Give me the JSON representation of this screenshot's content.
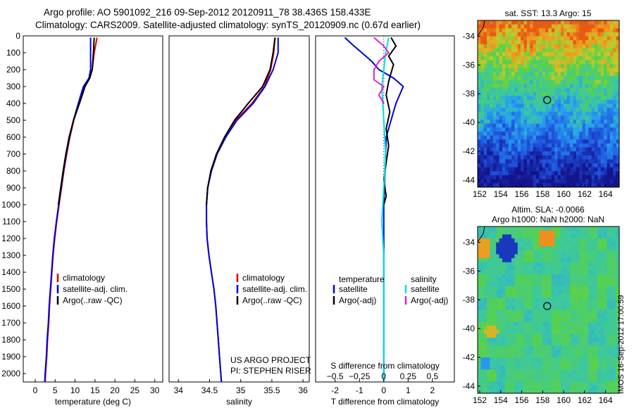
{
  "header": {
    "line1": "Argo profile: AO 5901092_216 09-Sep-2012 20120911_78 38.436S 158.433E",
    "line2": "Climatology: CARS2009. Satellite-adjusted climatology: synTS_20120909.nc (0.67d earlier)"
  },
  "credits": {
    "project": "US ARGO PROJECT",
    "pi": "PI: STEPHEN RISER",
    "imos": "IMOS 16-Sep-2012 17:00:59"
  },
  "colors": {
    "climatology": "#e00000",
    "satellite": "#0000e0",
    "argo": "#000000",
    "sal_satellite": "#00e0e0",
    "sal_argo": "#e020e0"
  },
  "chart_data": [
    {
      "type": "line",
      "name": "temperature-profile",
      "xlabel": "temperature (deg C)",
      "xlim": [
        -3,
        32
      ],
      "xticks": [
        0,
        5,
        10,
        15,
        20,
        25,
        30
      ],
      "ylim": [
        2050,
        0
      ],
      "yticks": [
        0,
        100,
        200,
        300,
        400,
        500,
        600,
        700,
        800,
        900,
        1000,
        1100,
        1200,
        1300,
        1400,
        1500,
        1600,
        1700,
        1800,
        1900,
        2000
      ],
      "legend": [
        "climatology",
        "satellite-adj. clim.",
        "Argo(..raw -QC)"
      ],
      "series": [
        {
          "name": "climatology",
          "color": "#e00000",
          "points": [
            [
              15.5,
              10
            ],
            [
              15.2,
              50
            ],
            [
              14.8,
              100
            ],
            [
              14.3,
              200
            ],
            [
              13.5,
              250
            ],
            [
              12.3,
              300
            ],
            [
              11.0,
              400
            ],
            [
              9.7,
              500
            ],
            [
              8.7,
              600
            ],
            [
              7.9,
              700
            ],
            [
              7.2,
              800
            ],
            [
              6.6,
              900
            ],
            [
              6.0,
              1000
            ],
            [
              5.4,
              1100
            ],
            [
              4.9,
              1200
            ],
            [
              4.5,
              1300
            ],
            [
              4.2,
              1400
            ],
            [
              3.9,
              1500
            ],
            [
              3.6,
              1600
            ],
            [
              3.4,
              1700
            ],
            [
              3.1,
              1800
            ],
            [
              2.9,
              1900
            ],
            [
              2.6,
              2000
            ],
            [
              2.5,
              2050
            ]
          ]
        },
        {
          "name": "satellite-adj. clim.",
          "color": "#0000e0",
          "points": [
            [
              13.9,
              10
            ],
            [
              13.9,
              100
            ],
            [
              13.9,
              200
            ],
            [
              13.5,
              250
            ],
            [
              12.1,
              300
            ],
            [
              10.8,
              400
            ],
            [
              9.6,
              500
            ],
            [
              8.6,
              600
            ],
            [
              7.8,
              700
            ],
            [
              7.1,
              800
            ],
            [
              6.5,
              900
            ],
            [
              5.9,
              1000
            ],
            [
              5.3,
              1100
            ],
            [
              4.8,
              1200
            ],
            [
              4.4,
              1300
            ],
            [
              4.1,
              1400
            ],
            [
              3.8,
              1500
            ],
            [
              3.5,
              1600
            ],
            [
              3.3,
              1700
            ],
            [
              3.0,
              1800
            ],
            [
              2.8,
              1900
            ],
            [
              2.5,
              2000
            ],
            [
              2.4,
              2050
            ]
          ]
        },
        {
          "name": "Argo(..raw -QC)",
          "color": "#000000",
          "points": [
            [
              14.8,
              10
            ],
            [
              14.6,
              100
            ],
            [
              14.3,
              200
            ],
            [
              13.7,
              250
            ],
            [
              12.5,
              300
            ],
            [
              11.1,
              400
            ],
            [
              9.6,
              500
            ],
            [
              8.5,
              600
            ],
            [
              7.7,
              700
            ],
            [
              7.0,
              800
            ],
            [
              6.4,
              900
            ],
            [
              5.8,
              1000
            ]
          ]
        }
      ]
    },
    {
      "type": "line",
      "name": "salinity-profile",
      "xlabel": "salinity",
      "xlim": [
        33.85,
        36.1
      ],
      "xticks": [
        34,
        34.5,
        35,
        35.5,
        36
      ],
      "ylim": [
        2050,
        0
      ],
      "legend": [
        "climatology",
        "satellite-adj. clim.",
        "Argo(..raw -QC)"
      ],
      "series": [
        {
          "name": "climatology",
          "color": "#e00000",
          "points": [
            [
              35.55,
              10
            ],
            [
              35.53,
              100
            ],
            [
              35.48,
              200
            ],
            [
              35.38,
              300
            ],
            [
              35.18,
              400
            ],
            [
              34.92,
              500
            ],
            [
              34.75,
              600
            ],
            [
              34.62,
              700
            ],
            [
              34.53,
              800
            ],
            [
              34.47,
              900
            ],
            [
              34.45,
              1000
            ],
            [
              34.45,
              1100
            ],
            [
              34.46,
              1200
            ],
            [
              34.49,
              1300
            ],
            [
              34.53,
              1400
            ],
            [
              34.57,
              1500
            ],
            [
              34.6,
              1600
            ],
            [
              34.62,
              1700
            ],
            [
              34.64,
              1800
            ],
            [
              34.66,
              1900
            ],
            [
              34.68,
              2000
            ],
            [
              34.69,
              2050
            ]
          ]
        },
        {
          "name": "satellite-adj. clim.",
          "color": "#0000e0",
          "points": [
            [
              35.6,
              10
            ],
            [
              35.6,
              100
            ],
            [
              35.52,
              200
            ],
            [
              35.39,
              300
            ],
            [
              35.2,
              400
            ],
            [
              34.94,
              500
            ],
            [
              34.76,
              600
            ],
            [
              34.62,
              700
            ],
            [
              34.53,
              800
            ],
            [
              34.47,
              900
            ],
            [
              34.45,
              1000
            ],
            [
              34.45,
              1100
            ],
            [
              34.46,
              1200
            ],
            [
              34.49,
              1300
            ],
            [
              34.53,
              1400
            ],
            [
              34.57,
              1500
            ],
            [
              34.6,
              1600
            ],
            [
              34.62,
              1700
            ],
            [
              34.64,
              1800
            ],
            [
              34.66,
              1900
            ],
            [
              34.68,
              2000
            ],
            [
              34.69,
              2050
            ]
          ]
        },
        {
          "name": "Argo(..raw -QC)",
          "color": "#000000",
          "points": [
            [
              35.55,
              10
            ],
            [
              35.52,
              100
            ],
            [
              35.47,
              200
            ],
            [
              35.35,
              300
            ],
            [
              35.12,
              400
            ],
            [
              34.9,
              500
            ],
            [
              34.74,
              600
            ],
            [
              34.61,
              700
            ],
            [
              34.52,
              800
            ],
            [
              34.47,
              900
            ],
            [
              34.45,
              1000
            ]
          ]
        }
      ]
    },
    {
      "type": "line",
      "name": "difference-profile",
      "xlabel": "T difference from climatology",
      "xlabel_top": "S difference from climatology",
      "xlim": [
        -2.8,
        2.9
      ],
      "xticks": [
        -2,
        -1,
        0,
        1,
        2
      ],
      "xticks_s": [
        -0.5,
        -0.25,
        0,
        0.25,
        0.5
      ],
      "xticks_s_labels": [
        "−0.5",
        "−0.25",
        "0",
        "0.25",
        "0.5"
      ],
      "ylim": [
        2050,
        0
      ],
      "legend_temperature_title": "temperature",
      "legend_salinity_title": "salinity",
      "legend": [
        "satellite",
        "Argo(-adj)",
        "satellite",
        "Argo(-adj)"
      ],
      "series": [
        {
          "name": "T satellite",
          "color": "#0000e0",
          "points": [
            [
              -1.6,
              10
            ],
            [
              -1.3,
              50
            ],
            [
              -0.9,
              100
            ],
            [
              -0.5,
              150
            ],
            [
              -0.2,
              200
            ],
            [
              0.4,
              250
            ],
            [
              0.8,
              300
            ],
            [
              0.5,
              400
            ],
            [
              0.3,
              500
            ],
            [
              0.1,
              600
            ],
            [
              0.05,
              800
            ],
            [
              0.0,
              1000
            ],
            [
              0.0,
              2050
            ]
          ]
        },
        {
          "name": "T Argo(-adj)",
          "color": "#000000",
          "points": [
            [
              0.3,
              10
            ],
            [
              0.5,
              60
            ],
            [
              0.2,
              120
            ],
            [
              0.4,
              170
            ],
            [
              0.3,
              220
            ],
            [
              0.2,
              270
            ],
            [
              0.1,
              350
            ],
            [
              0.25,
              450
            ],
            [
              0.1,
              550
            ],
            [
              0.2,
              650
            ],
            [
              0.1,
              750
            ],
            [
              0.0,
              850
            ],
            [
              0.1,
              950
            ],
            [
              0.0,
              1000
            ]
          ]
        },
        {
          "name": "S satellite",
          "color": "#00e0e0",
          "points": [
            [
              0.05,
              10
            ],
            [
              0.02,
              100
            ],
            [
              0.0,
              200
            ],
            [
              -0.02,
              300
            ],
            [
              0.0,
              500
            ],
            [
              0.02,
              700
            ],
            [
              0.0,
              900
            ],
            [
              -0.02,
              1100
            ],
            [
              0.0,
              1300
            ],
            [
              0.0,
              1500
            ],
            [
              0.0,
              1800
            ],
            [
              0.0,
              2050
            ]
          ]
        },
        {
          "name": "S Argo(-adj)",
          "color": "#e020e0",
          "points": [
            [
              -0.1,
              10
            ],
            [
              0.0,
              60
            ],
            [
              0.05,
              100
            ],
            [
              -0.05,
              150
            ],
            [
              -0.1,
              200
            ],
            [
              -0.1,
              260
            ],
            [
              0.0,
              300
            ],
            [
              -0.05,
              350
            ],
            [
              0.0,
              400
            ]
          ]
        }
      ]
    },
    {
      "type": "heatmap",
      "name": "sst-map",
      "title": "sat. SST: 13.3 Argo: 15",
      "xticks": [
        152,
        154,
        156,
        158,
        160,
        162,
        164
      ],
      "yticks": [
        -34,
        -36,
        -38,
        -40,
        -42,
        -44
      ],
      "xlim": [
        151.8,
        165.3
      ],
      "ylim": [
        -44.5,
        -32.9
      ],
      "argo_position": [
        158.433,
        -38.436
      ]
    },
    {
      "type": "heatmap",
      "name": "sla-map",
      "title_line1": "Altim. SLA: -0.0066",
      "title_line2": "Argo h1000: NaN h2000: NaN",
      "xticks": [
        152,
        154,
        156,
        158,
        160,
        162,
        164
      ],
      "yticks": [
        -34,
        -36,
        -38,
        -40,
        -42,
        -44
      ],
      "xlim": [
        151.8,
        165.3
      ],
      "ylim": [
        -44.5,
        -32.9
      ],
      "argo_position": [
        158.433,
        -38.436
      ]
    }
  ]
}
